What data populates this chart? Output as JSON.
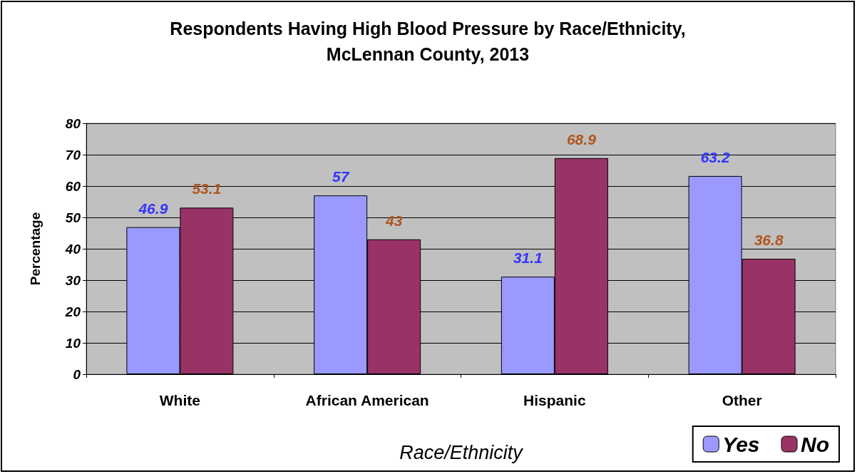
{
  "chart_data": {
    "type": "bar",
    "title": "Respondents Having High Blood Pressure by Race/Ethnicity,\nMcLennan County, 2013",
    "xlabel": "Race/Ethnicity",
    "ylabel": "Percentage",
    "categories": [
      "White",
      "African American",
      "Hispanic",
      "Other"
    ],
    "series": [
      {
        "name": "Yes",
        "color": "#9999ff",
        "values": [
          46.9,
          57,
          31.1,
          63.2
        ]
      },
      {
        "name": "No",
        "color": "#993366",
        "values": [
          53.1,
          43,
          68.9,
          36.8
        ]
      }
    ],
    "ylim": [
      0,
      80
    ],
    "yticks": [
      0,
      10,
      20,
      30,
      40,
      50,
      60,
      70,
      80
    ],
    "grid": "y",
    "legend": "bottom right",
    "data_labels": true
  }
}
